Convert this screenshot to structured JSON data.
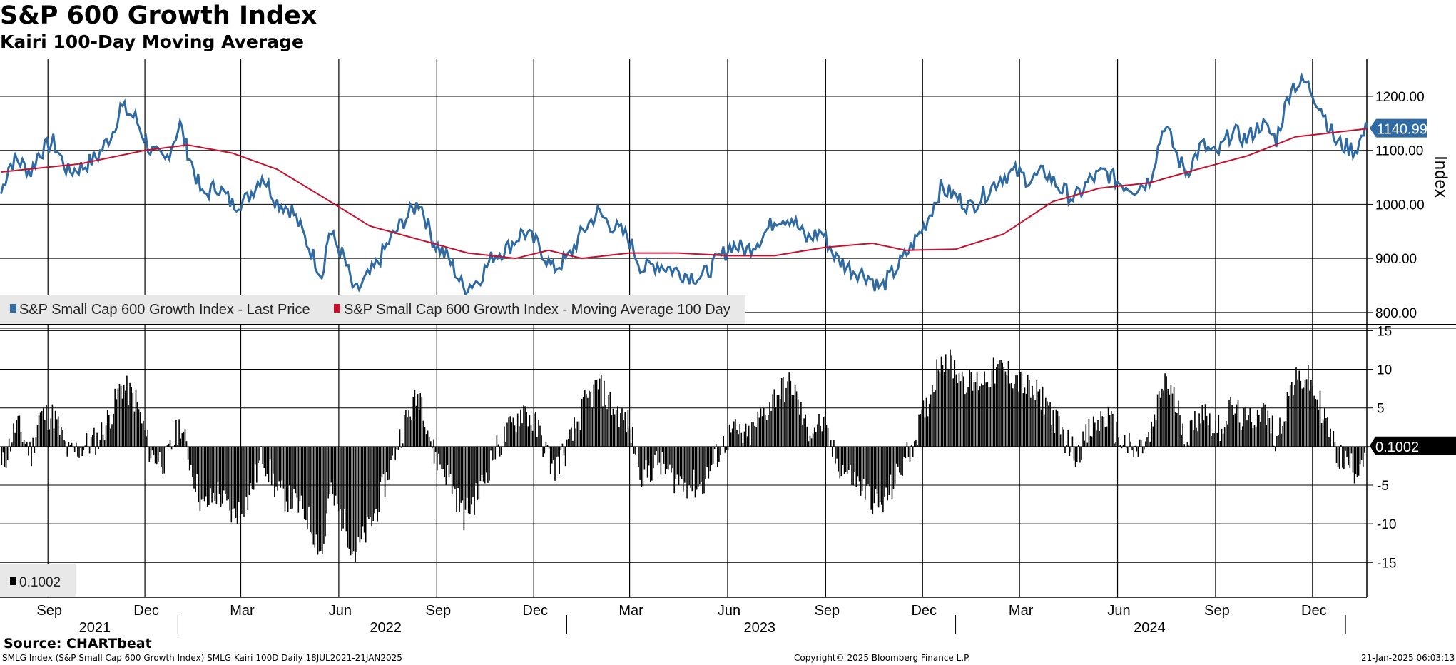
{
  "header": {
    "title": "S&P 600 Growth Index",
    "subtitle": "Kairi 100-Day Moving Average"
  },
  "footer": {
    "source": "Source: CHARTbeat",
    "ticker_line": "SMLG Index (S&P Small Cap 600 Growth Index) SMLG Kairi 100D  Daily 18JUL2021-21JAN2025",
    "copyright": "Copyright© 2025 Bloomberg Finance L.P.",
    "timestamp": "21-Jan-2025 06:03:13"
  },
  "colors": {
    "price": "#2f6aa3",
    "ma": "#c8102e",
    "kairi": "#000000",
    "grid": "#000000",
    "price_tag_bg": "#2f6aa3"
  },
  "chart_data": [
    {
      "type": "line",
      "panel": "upper",
      "ylabel": "Index",
      "ylim": [
        780,
        1270
      ],
      "yticks": [
        "800.00",
        "900.00",
        "1000.00",
        "1100.00",
        "1200.00"
      ],
      "x_start": "2021-07-18",
      "x_end": "2025-01-21",
      "last_value_label": "1140.99",
      "legend": [
        "S&P Small Cap 600 Growth Index - Last Price",
        "S&P Small Cap 600 Growth Index - Moving Average 100 Day"
      ],
      "series": [
        {
          "name": "S&P Small Cap 600 Growth Index - Last Price",
          "points": [
            [
              "2021-07-19",
              1020
            ],
            [
              "2021-07-26",
              1070
            ],
            [
              "2021-08-02",
              1085
            ],
            [
              "2021-08-16",
              1060
            ],
            [
              "2021-08-23",
              1095
            ],
            [
              "2021-09-06",
              1115
            ],
            [
              "2021-09-20",
              1060
            ],
            [
              "2021-10-04",
              1070
            ],
            [
              "2021-10-18",
              1090
            ],
            [
              "2021-11-01",
              1135
            ],
            [
              "2021-11-08",
              1180
            ],
            [
              "2021-11-22",
              1160
            ],
            [
              "2021-12-06",
              1100
            ],
            [
              "2021-12-20",
              1080
            ],
            [
              "2022-01-03",
              1148
            ],
            [
              "2022-01-10",
              1100
            ],
            [
              "2022-01-24",
              1015
            ],
            [
              "2022-02-07",
              1035
            ],
            [
              "2022-02-21",
              1000
            ],
            [
              "2022-03-07",
              1010
            ],
            [
              "2022-03-21",
              1055
            ],
            [
              "2022-04-04",
              1005
            ],
            [
              "2022-04-18",
              990
            ],
            [
              "2022-05-02",
              930
            ],
            [
              "2022-05-16",
              870
            ],
            [
              "2022-05-23",
              950
            ],
            [
              "2022-06-06",
              900
            ],
            [
              "2022-06-16",
              835
            ],
            [
              "2022-07-04",
              880
            ],
            [
              "2022-07-18",
              930
            ],
            [
              "2022-08-01",
              970
            ],
            [
              "2022-08-16",
              1005
            ],
            [
              "2022-08-29",
              930
            ],
            [
              "2022-09-12",
              900
            ],
            [
              "2022-09-26",
              845
            ],
            [
              "2022-10-10",
              860
            ],
            [
              "2022-10-24",
              905
            ],
            [
              "2022-11-07",
              920
            ],
            [
              "2022-11-21",
              950
            ],
            [
              "2022-12-05",
              925
            ],
            [
              "2022-12-19",
              880
            ],
            [
              "2023-01-02",
              900
            ],
            [
              "2023-01-16",
              950
            ],
            [
              "2023-01-30",
              985
            ],
            [
              "2023-02-13",
              960
            ],
            [
              "2023-02-27",
              940
            ],
            [
              "2023-03-13",
              880
            ],
            [
              "2023-03-27",
              890
            ],
            [
              "2023-04-10",
              880
            ],
            [
              "2023-04-24",
              870
            ],
            [
              "2023-05-08",
              865
            ],
            [
              "2023-05-22",
              895
            ],
            [
              "2023-06-05",
              925
            ],
            [
              "2023-06-19",
              915
            ],
            [
              "2023-07-03",
              940
            ],
            [
              "2023-07-17",
              975
            ],
            [
              "2023-07-31",
              975
            ],
            [
              "2023-08-14",
              935
            ],
            [
              "2023-08-28",
              950
            ],
            [
              "2023-09-11",
              900
            ],
            [
              "2023-09-25",
              880
            ],
            [
              "2023-10-09",
              870
            ],
            [
              "2023-10-23",
              845
            ],
            [
              "2023-11-06",
              880
            ],
            [
              "2023-11-20",
              920
            ],
            [
              "2023-12-04",
              965
            ],
            [
              "2023-12-18",
              1030
            ],
            [
              "2024-01-01",
              1015
            ],
            [
              "2024-01-15",
              995
            ],
            [
              "2024-01-29",
              1020
            ],
            [
              "2024-02-12",
              1050
            ],
            [
              "2024-02-26",
              1060
            ],
            [
              "2024-03-11",
              1045
            ],
            [
              "2024-03-25",
              1060
            ],
            [
              "2024-04-08",
              1030
            ],
            [
              "2024-04-22",
              1010
            ],
            [
              "2024-05-06",
              1045
            ],
            [
              "2024-05-20",
              1060
            ],
            [
              "2024-06-03",
              1040
            ],
            [
              "2024-06-17",
              1030
            ],
            [
              "2024-07-01",
              1045
            ],
            [
              "2024-07-15",
              1150
            ],
            [
              "2024-07-29",
              1080
            ],
            [
              "2024-08-05",
              1060
            ],
            [
              "2024-08-19",
              1110
            ],
            [
              "2024-09-02",
              1090
            ],
            [
              "2024-09-16",
              1135
            ],
            [
              "2024-09-30",
              1120
            ],
            [
              "2024-10-14",
              1150
            ],
            [
              "2024-10-28",
              1120
            ],
            [
              "2024-11-11",
              1220
            ],
            [
              "2024-11-25",
              1225
            ],
            [
              "2024-12-09",
              1180
            ],
            [
              "2024-12-23",
              1115
            ],
            [
              "2025-01-10",
              1100
            ],
            [
              "2025-01-21",
              1140.99
            ]
          ]
        },
        {
          "name": "S&P Small Cap 600 Growth Index - Moving Average 100 Day",
          "points": [
            [
              "2021-07-19",
              1060
            ],
            [
              "2021-10-01",
              1075
            ],
            [
              "2021-12-01",
              1100
            ],
            [
              "2022-01-10",
              1110
            ],
            [
              "2022-02-21",
              1095
            ],
            [
              "2022-04-04",
              1065
            ],
            [
              "2022-05-16",
              1015
            ],
            [
              "2022-06-30",
              960
            ],
            [
              "2022-08-15",
              935
            ],
            [
              "2022-09-30",
              910
            ],
            [
              "2022-11-14",
              900
            ],
            [
              "2022-12-15",
              915
            ],
            [
              "2023-01-15",
              900
            ],
            [
              "2023-03-01",
              910
            ],
            [
              "2023-04-15",
              910
            ],
            [
              "2023-06-01",
              905
            ],
            [
              "2023-07-15",
              905
            ],
            [
              "2023-08-30",
              920
            ],
            [
              "2023-10-15",
              928
            ],
            [
              "2023-11-15",
              915
            ],
            [
              "2024-01-01",
              917
            ],
            [
              "2024-02-15",
              945
            ],
            [
              "2024-04-01",
              1005
            ],
            [
              "2024-05-15",
              1030
            ],
            [
              "2024-07-01",
              1040
            ],
            [
              "2024-08-15",
              1065
            ],
            [
              "2024-10-01",
              1090
            ],
            [
              "2024-11-15",
              1125
            ],
            [
              "2025-01-21",
              1140
            ]
          ]
        }
      ]
    },
    {
      "type": "bar",
      "panel": "lower",
      "ylim": [
        -19.5,
        15.5
      ],
      "yticks": [
        "-15",
        "-10",
        "-5",
        "0",
        "5",
        "10",
        "15"
      ],
      "last_value_label": "0.1002",
      "legend": [
        "0.1002"
      ],
      "series": [
        {
          "name": "SMLG Kairi 100D",
          "points": [
            [
              "2021-07-19",
              -3
            ],
            [
              "2021-08-02",
              3
            ],
            [
              "2021-08-16",
              -1
            ],
            [
              "2021-08-23",
              4
            ],
            [
              "2021-09-06",
              4
            ],
            [
              "2021-09-20",
              -1
            ],
            [
              "2021-10-04",
              0
            ],
            [
              "2021-10-18",
              1
            ],
            [
              "2021-11-01",
              5
            ],
            [
              "2021-11-08",
              8
            ],
            [
              "2021-11-22",
              6
            ],
            [
              "2021-12-06",
              -1
            ],
            [
              "2021-12-20",
              -2
            ],
            [
              "2022-01-03",
              3
            ],
            [
              "2022-01-10",
              -1
            ],
            [
              "2022-01-24",
              -8
            ],
            [
              "2022-02-07",
              -6
            ],
            [
              "2022-02-21",
              -9
            ],
            [
              "2022-03-07",
              -7
            ],
            [
              "2022-03-21",
              -1
            ],
            [
              "2022-04-04",
              -6
            ],
            [
              "2022-04-18",
              -7
            ],
            [
              "2022-05-02",
              -9
            ],
            [
              "2022-05-16",
              -14
            ],
            [
              "2022-05-23",
              -6
            ],
            [
              "2022-06-06",
              -10
            ],
            [
              "2022-06-16",
              -14
            ],
            [
              "2022-07-04",
              -9
            ],
            [
              "2022-07-18",
              -3
            ],
            [
              "2022-08-01",
              3
            ],
            [
              "2022-08-16",
              7
            ],
            [
              "2022-08-29",
              -1
            ],
            [
              "2022-09-12",
              -4
            ],
            [
              "2022-09-26",
              -9
            ],
            [
              "2022-10-10",
              -6
            ],
            [
              "2022-10-24",
              -1
            ],
            [
              "2022-11-07",
              2
            ],
            [
              "2022-11-21",
              5
            ],
            [
              "2022-12-05",
              2
            ],
            [
              "2022-12-19",
              -3
            ],
            [
              "2023-01-02",
              0
            ],
            [
              "2023-01-16",
              5
            ],
            [
              "2023-01-30",
              8
            ],
            [
              "2023-02-13",
              5
            ],
            [
              "2023-02-27",
              3
            ],
            [
              "2023-03-13",
              -4
            ],
            [
              "2023-03-27",
              -2
            ],
            [
              "2023-04-10",
              -4
            ],
            [
              "2023-04-24",
              -5
            ],
            [
              "2023-05-08",
              -5
            ],
            [
              "2023-05-22",
              -1
            ],
            [
              "2023-06-05",
              2
            ],
            [
              "2023-06-19",
              1
            ],
            [
              "2023-07-03",
              4
            ],
            [
              "2023-07-17",
              7
            ],
            [
              "2023-07-31",
              8
            ],
            [
              "2023-08-14",
              2
            ],
            [
              "2023-08-28",
              3
            ],
            [
              "2023-09-11",
              -2
            ],
            [
              "2023-09-25",
              -4
            ],
            [
              "2023-10-09",
              -6
            ],
            [
              "2023-10-23",
              -8
            ],
            [
              "2023-11-06",
              -4
            ],
            [
              "2023-11-20",
              0
            ],
            [
              "2023-12-04",
              5
            ],
            [
              "2023-12-18",
              12
            ],
            [
              "2024-01-01",
              10
            ],
            [
              "2024-01-15",
              8
            ],
            [
              "2024-01-29",
              9
            ],
            [
              "2024-02-12",
              10
            ],
            [
              "2024-02-26",
              9
            ],
            [
              "2024-03-11",
              7
            ],
            [
              "2024-03-25",
              6
            ],
            [
              "2024-04-08",
              2
            ],
            [
              "2024-04-22",
              -1
            ],
            [
              "2024-05-06",
              2
            ],
            [
              "2024-05-20",
              4
            ],
            [
              "2024-06-03",
              1
            ],
            [
              "2024-06-17",
              -1
            ],
            [
              "2024-07-01",
              1
            ],
            [
              "2024-07-15",
              9
            ],
            [
              "2024-07-29",
              4
            ],
            [
              "2024-08-05",
              1
            ],
            [
              "2024-08-19",
              5
            ],
            [
              "2024-09-02",
              2
            ],
            [
              "2024-09-16",
              5
            ],
            [
              "2024-09-30",
              3
            ],
            [
              "2024-10-14",
              5
            ],
            [
              "2024-10-28",
              1
            ],
            [
              "2024-11-11",
              8
            ],
            [
              "2024-11-25",
              9
            ],
            [
              "2024-12-09",
              5
            ],
            [
              "2024-12-23",
              -1
            ],
            [
              "2025-01-10",
              -3
            ],
            [
              "2025-01-21",
              0.1002
            ]
          ]
        }
      ]
    }
  ],
  "x_axis": {
    "months": [
      [
        "2021-09-01",
        "Sep"
      ],
      [
        "2021-12-01",
        "Dec"
      ],
      [
        "2022-03-01",
        "Mar"
      ],
      [
        "2022-06-01",
        "Jun"
      ],
      [
        "2022-09-01",
        "Sep"
      ],
      [
        "2022-12-01",
        "Dec"
      ],
      [
        "2023-03-01",
        "Mar"
      ],
      [
        "2023-06-01",
        "Jun"
      ],
      [
        "2023-09-01",
        "Sep"
      ],
      [
        "2023-12-01",
        "Dec"
      ],
      [
        "2024-03-01",
        "Mar"
      ],
      [
        "2024-06-01",
        "Jun"
      ],
      [
        "2024-09-01",
        "Sep"
      ],
      [
        "2024-12-01",
        "Dec"
      ]
    ],
    "years": [
      [
        "2021-10-15",
        "2021"
      ],
      [
        "2022-07-15",
        "2022"
      ],
      [
        "2023-07-01",
        "2023"
      ],
      [
        "2024-07-01",
        "2024"
      ]
    ],
    "year_dividers": [
      "2022-01-01",
      "2023-01-01",
      "2024-01-01",
      "2025-01-01"
    ]
  }
}
